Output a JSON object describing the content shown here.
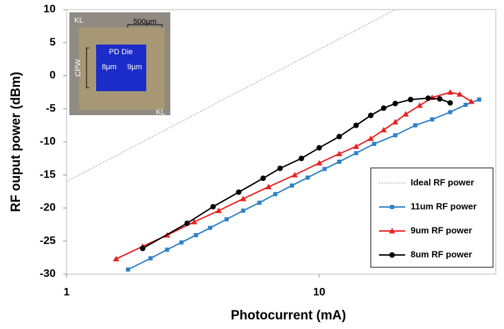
{
  "chart_data": {
    "type": "line",
    "x_label": "Photocurrent (mA)",
    "y_label": "RF ouput power (dBm)",
    "xlim": [
      1,
      50
    ],
    "xscale": "log",
    "xticks": [
      1,
      10
    ],
    "ylim": [
      -30,
      10
    ],
    "yticks": [
      -30,
      -25,
      -20,
      -15,
      -10,
      -5,
      0,
      5,
      10
    ],
    "inset_labels": [
      "PD Die",
      "8µm",
      "9µm",
      "500µm",
      "CPW",
      "KL",
      "KL"
    ],
    "series": [
      {
        "name": "Ideal RF power",
        "color": "#999999",
        "dash": true,
        "x": [
          1,
          20
        ],
        "values": [
          -16,
          10
        ]
      },
      {
        "name": "11um RF power",
        "color": "#2f80c8",
        "marker": "square",
        "x": [
          1.75,
          2.15,
          2.5,
          2.85,
          3.25,
          3.7,
          4.3,
          5,
          5.8,
          6.7,
          7.8,
          9,
          10.5,
          12,
          14,
          16.5,
          20,
          24,
          28,
          33,
          38,
          43
        ],
        "values": [
          -29.3,
          -27.6,
          -26.3,
          -25.2,
          -24.1,
          -23,
          -21.7,
          -20.4,
          -19.2,
          -17.9,
          -16.6,
          -15.4,
          -14.1,
          -13,
          -11.7,
          -10.3,
          -9,
          -7.5,
          -6.6,
          -5.5,
          -4.4,
          -3.6
        ]
      },
      {
        "name": "9um RF power",
        "color": "#e82020",
        "marker": "triangle",
        "x": [
          1.57,
          2,
          2.5,
          3.2,
          4,
          5,
          6.3,
          8,
          10,
          12,
          14,
          16,
          18,
          20,
          22,
          25,
          28,
          33,
          36,
          40
        ],
        "values": [
          -27.7,
          -25.8,
          -24.1,
          -22.1,
          -20.4,
          -18.6,
          -16.8,
          -15,
          -13.2,
          -11.8,
          -10.7,
          -9.5,
          -8.2,
          -7,
          -5.8,
          -4.5,
          -3.3,
          -2.5,
          -2.8,
          -3.9
        ]
      },
      {
        "name": "8um RF power",
        "color": "#000000",
        "marker": "circle",
        "x": [
          2,
          3,
          3.8,
          4.8,
          6,
          7,
          8.5,
          10,
          12,
          14,
          16,
          18,
          20,
          23,
          27,
          30,
          33
        ],
        "values": [
          -26.1,
          -22.3,
          -19.8,
          -17.6,
          -15.5,
          -14,
          -12.5,
          -10.9,
          -9.2,
          -7.5,
          -6,
          -4.9,
          -4.2,
          -3.6,
          -3.4,
          -3.5,
          -4.1
        ]
      }
    ]
  }
}
